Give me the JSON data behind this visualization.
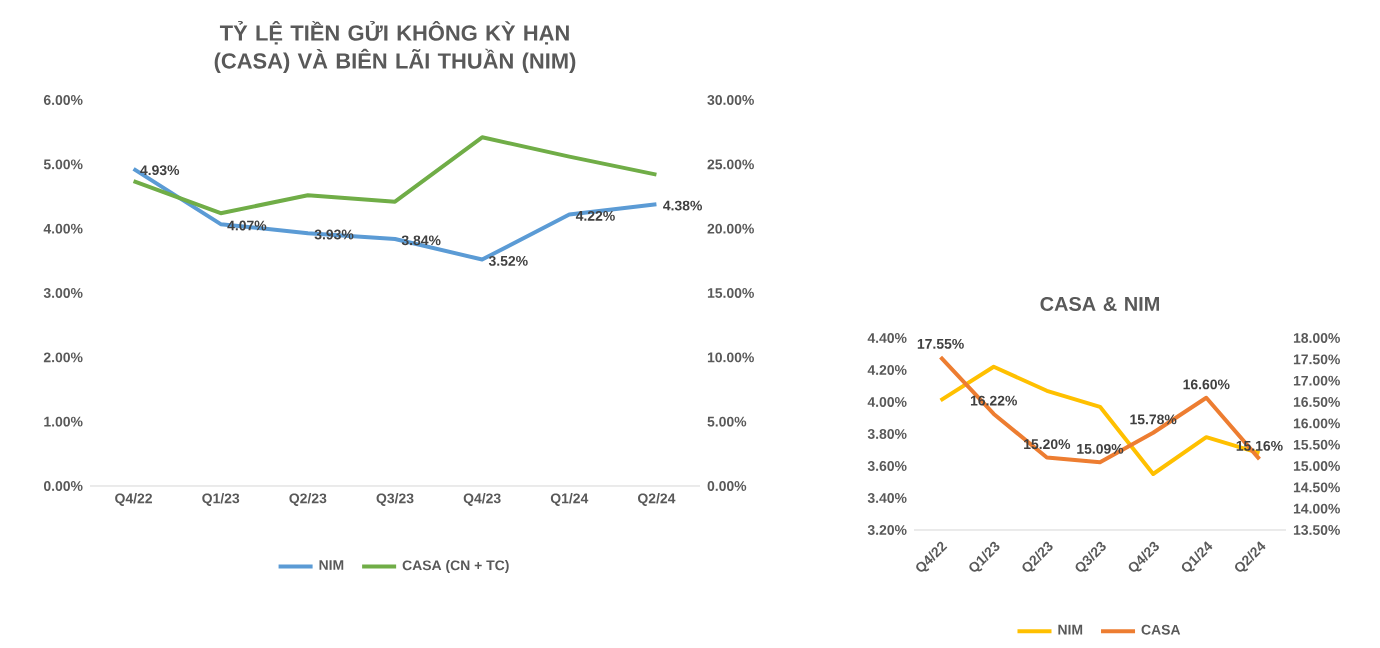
{
  "chart_data": [
    {
      "type": "line",
      "title": "TỶ LỆ TIỀN GỬI KHÔNG KỲ HẠN (CASA) VÀ BIÊN LÃI THUẦN (NIM)",
      "categories": [
        "Q4/22",
        "Q1/23",
        "Q2/23",
        "Q3/23",
        "Q4/23",
        "Q1/24",
        "Q2/24"
      ],
      "ylim": [
        0,
        6
      ],
      "yticks": [
        {
          "value": 0,
          "label": "0.00%"
        },
        {
          "value": 1,
          "label": "1.00%"
        },
        {
          "value": 2,
          "label": "2.00%"
        },
        {
          "value": 3,
          "label": "3.00%"
        },
        {
          "value": 4,
          "label": "4.00%"
        },
        {
          "value": 5,
          "label": "5.00%"
        },
        {
          "value": 6,
          "label": "6.00%"
        }
      ],
      "y2lim": [
        0,
        30
      ],
      "y2ticks": [
        {
          "value": 0,
          "label": "0.00%"
        },
        {
          "value": 5,
          "label": "5.00%"
        },
        {
          "value": 10,
          "label": "10.00%"
        },
        {
          "value": 15,
          "label": "15.00%"
        },
        {
          "value": 20,
          "label": "20.00%"
        },
        {
          "value": 25,
          "label": "25.00%"
        },
        {
          "value": 30,
          "label": "30.00%"
        }
      ],
      "legend": "bottom",
      "series": [
        {
          "name": "NIM",
          "color": "#5b9bd5",
          "values": [
            4.93,
            4.07,
            3.93,
            3.84,
            3.52,
            4.22,
            4.38
          ],
          "value_labels": [
            "4.93%",
            "4.07%",
            "3.93%",
            "3.84%",
            "3.52%",
            "4.22%",
            "4.38%"
          ]
        },
        {
          "name": "CASA (CN + TC)",
          "color": "#70ad47",
          "axis": "y2",
          "values": [
            23.7,
            21.2,
            22.6,
            22.1,
            27.1,
            25.6,
            24.2
          ]
        }
      ]
    },
    {
      "type": "line",
      "title": "CASA & NIM",
      "categories": [
        "Q4/22",
        "Q1/23",
        "Q2/23",
        "Q3/23",
        "Q4/23",
        "Q1/24",
        "Q2/24"
      ],
      "ylim": [
        3.2,
        4.4
      ],
      "yticks": [
        {
          "value": 3.2,
          "label": "3.20%"
        },
        {
          "value": 3.4,
          "label": "3.40%"
        },
        {
          "value": 3.6,
          "label": "3.60%"
        },
        {
          "value": 3.8,
          "label": "3.80%"
        },
        {
          "value": 4.0,
          "label": "4.00%"
        },
        {
          "value": 4.2,
          "label": "4.20%"
        },
        {
          "value": 4.4,
          "label": "4.40%"
        }
      ],
      "y2lim": [
        13.5,
        18
      ],
      "y2ticks": [
        {
          "value": 13.5,
          "label": "13.50%"
        },
        {
          "value": 14,
          "label": "14.00%"
        },
        {
          "value": 14.5,
          "label": "14.50%"
        },
        {
          "value": 15,
          "label": "15.00%"
        },
        {
          "value": 15.5,
          "label": "15.50%"
        },
        {
          "value": 16,
          "label": "16.00%"
        },
        {
          "value": 16.5,
          "label": "16.50%"
        },
        {
          "value": 17,
          "label": "17.00%"
        },
        {
          "value": 17.5,
          "label": "17.50%"
        },
        {
          "value": 18,
          "label": "18.00%"
        }
      ],
      "legend": "bottom",
      "series": [
        {
          "name": "NIM",
          "color": "#ffc000",
          "values": [
            4.01,
            4.22,
            4.07,
            3.97,
            3.55,
            3.78,
            3.68
          ]
        },
        {
          "name": "CASA",
          "color": "#ed7d31",
          "axis": "y2",
          "values": [
            17.55,
            16.22,
            15.2,
            15.09,
            15.78,
            16.6,
            15.16
          ],
          "value_labels": [
            "17.55%",
            "16.22%",
            "15.20%",
            "15.09%",
            "15.78%",
            "16.60%",
            "15.16%"
          ]
        }
      ]
    }
  ]
}
